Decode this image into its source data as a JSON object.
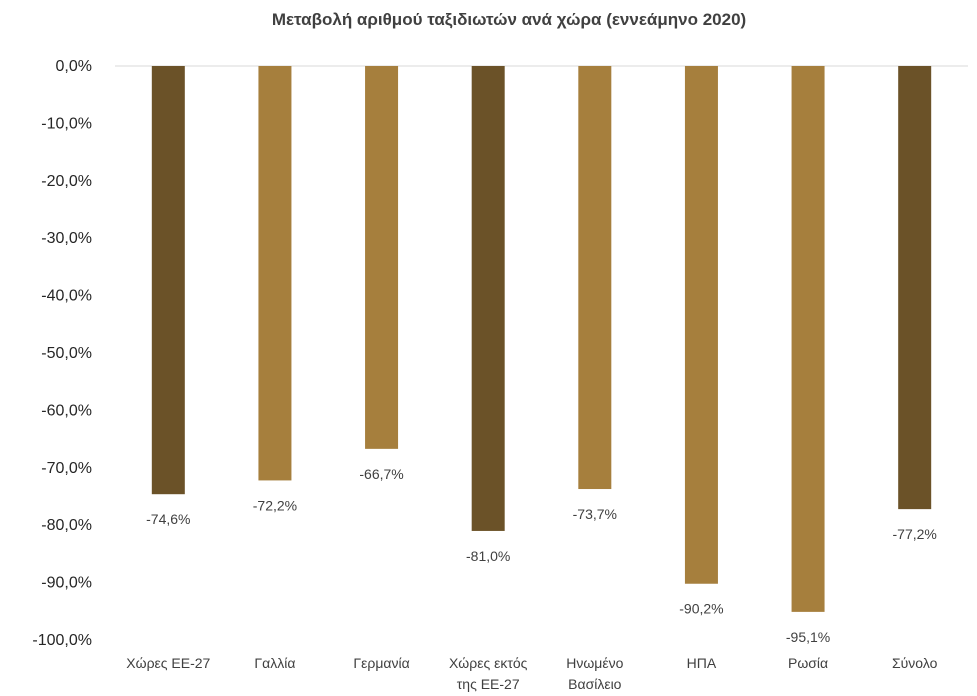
{
  "chart_data": {
    "type": "bar",
    "title": "Μεταβολή αριθμού ταξιδιωτών ανά χώρα (εννεάμηνο 2020)",
    "xlabel": "",
    "ylabel": "",
    "ylim": [
      -100,
      0
    ],
    "yticks": [
      "0,0%",
      "-10,0%",
      "-20,0%",
      "-30,0%",
      "-40,0%",
      "-50,0%",
      "-60,0%",
      "-70,0%",
      "-80,0%",
      "-90,0%",
      "-100,0%"
    ],
    "categories": [
      [
        "Χώρες ΕΕ-27"
      ],
      [
        "Γαλλία"
      ],
      [
        "Γερμανία"
      ],
      [
        "Χώρες εκτός",
        "της ΕΕ-27"
      ],
      [
        "Ηνωμένο",
        "Βασίλειο"
      ],
      [
        "ΗΠΑ"
      ],
      [
        "Ρωσία"
      ],
      [
        "Σύνολο"
      ]
    ],
    "values": [
      -74.6,
      -72.2,
      -66.7,
      -81.0,
      -73.7,
      -90.2,
      -95.1,
      -77.2
    ],
    "data_labels": [
      "-74,6%",
      "-72,2%",
      "-66,7%",
      "-81,0%",
      "-73,7%",
      "-90,2%",
      "-95,1%",
      "-77,2%"
    ],
    "bar_colors": [
      "#6b5228",
      "#a67f3d",
      "#a67f3d",
      "#6b5228",
      "#a67f3d",
      "#a67f3d",
      "#a67f3d",
      "#6b5228"
    ],
    "grid": false,
    "legend": "none"
  }
}
